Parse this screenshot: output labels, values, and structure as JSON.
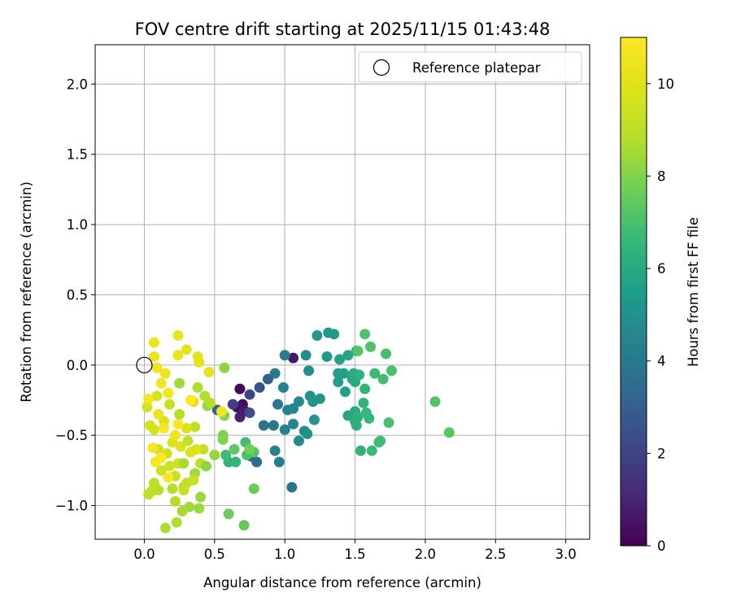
{
  "chart_data": {
    "type": "scatter",
    "title": "FOV centre drift starting at 2025/11/15 01:43:48",
    "xlabel": "Angular distance from reference (arcmin)",
    "ylabel": "Rotation from reference (arcmin)",
    "xlim": [
      -0.35,
      3.17
    ],
    "ylim": [
      -1.24,
      2.28
    ],
    "xticks": [
      0.0,
      0.5,
      1.0,
      1.5,
      2.0,
      2.5,
      3.0
    ],
    "xtick_labels": [
      "0.0",
      "0.5",
      "1.0",
      "1.5",
      "2.0",
      "2.5",
      "3.0"
    ],
    "yticks": [
      -1.0,
      -0.5,
      0.0,
      0.5,
      1.0,
      1.5,
      2.0
    ],
    "ytick_labels": [
      "−1.0",
      "−0.5",
      "0.0",
      "0.5",
      "1.0",
      "1.5",
      "2.0"
    ],
    "grid": true,
    "legend": {
      "position": "top-right",
      "entries": [
        {
          "label": "Reference platepar",
          "marker": "open-circle"
        }
      ]
    },
    "reference_point": {
      "x": 0.0,
      "y": 0.0
    },
    "colorbar": {
      "label": "Hours from first FF file",
      "colormap": "viridis",
      "range": [
        0,
        11
      ],
      "ticks": [
        0,
        2,
        4,
        6,
        8,
        10
      ],
      "tick_labels": [
        "0",
        "2",
        "4",
        "6",
        "8",
        "10"
      ]
    },
    "points": [
      {
        "x": 0.68,
        "y": -0.17,
        "h": 0.1
      },
      {
        "x": 0.7,
        "y": -0.28,
        "h": 0.3
      },
      {
        "x": 0.66,
        "y": -0.3,
        "h": 0.5
      },
      {
        "x": 0.72,
        "y": -0.33,
        "h": 0.7
      },
      {
        "x": 0.68,
        "y": -0.37,
        "h": 0.9
      },
      {
        "x": 1.06,
        "y": 0.05,
        "h": 0.6
      },
      {
        "x": 0.63,
        "y": -0.28,
        "h": 1.8
      },
      {
        "x": 0.75,
        "y": -0.21,
        "h": 2.1
      },
      {
        "x": 0.75,
        "y": -0.34,
        "h": 2.4
      },
      {
        "x": 0.82,
        "y": -0.16,
        "h": 2.6
      },
      {
        "x": 0.88,
        "y": -0.1,
        "h": 3.0
      },
      {
        "x": 0.52,
        "y": -0.32,
        "h": 3.2
      },
      {
        "x": 0.76,
        "y": -0.65,
        "h": 3.3
      },
      {
        "x": 0.8,
        "y": -0.69,
        "h": 3.5
      },
      {
        "x": 0.85,
        "y": -0.43,
        "h": 3.7
      },
      {
        "x": 0.92,
        "y": -0.43,
        "h": 3.8
      },
      {
        "x": 0.95,
        "y": -0.28,
        "h": 3.9
      },
      {
        "x": 0.93,
        "y": -0.06,
        "h": 4.0
      },
      {
        "x": 1.0,
        "y": 0.07,
        "h": 4.1
      },
      {
        "x": 1.05,
        "y": -0.87,
        "h": 3.8
      },
      {
        "x": 0.96,
        "y": -0.69,
        "h": 4.2
      },
      {
        "x": 0.93,
        "y": -0.61,
        "h": 4.3
      },
      {
        "x": 1.0,
        "y": -0.46,
        "h": 4.4
      },
      {
        "x": 0.99,
        "y": -0.16,
        "h": 4.4
      },
      {
        "x": 1.02,
        "y": -0.32,
        "h": 4.5
      },
      {
        "x": 1.06,
        "y": -0.31,
        "h": 4.6
      },
      {
        "x": 1.06,
        "y": -0.42,
        "h": 4.6
      },
      {
        "x": 1.1,
        "y": -0.26,
        "h": 4.7
      },
      {
        "x": 1.1,
        "y": -0.54,
        "h": 4.8
      },
      {
        "x": 1.14,
        "y": -0.47,
        "h": 4.8
      },
      {
        "x": 1.15,
        "y": 0.07,
        "h": 4.9
      },
      {
        "x": 1.17,
        "y": -0.04,
        "h": 4.9
      },
      {
        "x": 1.16,
        "y": -0.49,
        "h": 5.0
      },
      {
        "x": 1.18,
        "y": -0.22,
        "h": 5.0
      },
      {
        "x": 1.2,
        "y": -0.26,
        "h": 5.1
      },
      {
        "x": 1.21,
        "y": -0.39,
        "h": 5.1
      },
      {
        "x": 1.23,
        "y": 0.21,
        "h": 5.2
      },
      {
        "x": 1.25,
        "y": -0.24,
        "h": 5.2
      },
      {
        "x": 1.3,
        "y": 0.06,
        "h": 5.3
      },
      {
        "x": 1.31,
        "y": 0.23,
        "h": 5.3
      },
      {
        "x": 1.35,
        "y": 0.22,
        "h": 5.4
      },
      {
        "x": 1.38,
        "y": -0.06,
        "h": 5.5
      },
      {
        "x": 1.38,
        "y": -0.12,
        "h": 5.5
      },
      {
        "x": 1.42,
        "y": -0.06,
        "h": 5.6
      },
      {
        "x": 1.43,
        "y": -0.19,
        "h": 5.6
      },
      {
        "x": 1.39,
        "y": 0.04,
        "h": 5.7
      },
      {
        "x": 1.45,
        "y": 0.07,
        "h": 5.8
      },
      {
        "x": 1.45,
        "y": -0.36,
        "h": 5.8
      },
      {
        "x": 1.48,
        "y": -0.1,
        "h": 5.9
      },
      {
        "x": 1.5,
        "y": -0.12,
        "h": 6.0
      },
      {
        "x": 1.5,
        "y": -0.33,
        "h": 6.0
      },
      {
        "x": 1.49,
        "y": -0.06,
        "h": 6.1
      },
      {
        "x": 1.5,
        "y": -0.4,
        "h": 6.1
      },
      {
        "x": 1.51,
        "y": -0.43,
        "h": 6.2
      },
      {
        "x": 1.51,
        "y": 0.1,
        "h": 6.2
      },
      {
        "x": 1.52,
        "y": -0.37,
        "h": 6.3
      },
      {
        "x": 1.53,
        "y": -0.07,
        "h": 6.3
      },
      {
        "x": 1.54,
        "y": -0.61,
        "h": 6.4
      },
      {
        "x": 1.56,
        "y": -0.27,
        "h": 6.5
      },
      {
        "x": 1.57,
        "y": -0.17,
        "h": 6.5
      },
      {
        "x": 1.58,
        "y": -0.34,
        "h": 6.6
      },
      {
        "x": 1.6,
        "y": -0.38,
        "h": 6.6
      },
      {
        "x": 1.62,
        "y": -0.61,
        "h": 6.7
      },
      {
        "x": 1.64,
        "y": -0.06,
        "h": 6.7
      },
      {
        "x": 1.67,
        "y": -0.55,
        "h": 6.8
      },
      {
        "x": 1.68,
        "y": -0.54,
        "h": 6.8
      },
      {
        "x": 1.7,
        "y": -0.1,
        "h": 6.9
      },
      {
        "x": 1.72,
        "y": 0.08,
        "h": 6.9
      },
      {
        "x": 1.74,
        "y": -0.41,
        "h": 7.0
      },
      {
        "x": 1.76,
        "y": -0.04,
        "h": 7.0
      },
      {
        "x": 1.57,
        "y": 0.22,
        "h": 7.1
      },
      {
        "x": 1.61,
        "y": 0.13,
        "h": 7.1
      },
      {
        "x": 1.52,
        "y": 0.1,
        "h": 7.2
      },
      {
        "x": 2.07,
        "y": -0.26,
        "h": 7.2
      },
      {
        "x": 2.17,
        "y": -0.48,
        "h": 7.3
      },
      {
        "x": 0.6,
        "y": -0.69,
        "h": 6.4
      },
      {
        "x": 0.65,
        "y": -0.69,
        "h": 6.5
      },
      {
        "x": 0.58,
        "y": -0.64,
        "h": 6.8
      },
      {
        "x": 0.72,
        "y": -0.55,
        "h": 6.9
      },
      {
        "x": 0.73,
        "y": -0.64,
        "h": 7.0
      },
      {
        "x": 0.78,
        "y": -0.62,
        "h": 7.2
      },
      {
        "x": 0.64,
        "y": -0.6,
        "h": 7.4
      },
      {
        "x": 0.71,
        "y": -1.14,
        "h": 7.5
      },
      {
        "x": 0.6,
        "y": -1.06,
        "h": 7.6
      },
      {
        "x": 0.78,
        "y": -0.88,
        "h": 7.6
      },
      {
        "x": 0.75,
        "y": -0.6,
        "h": 7.8
      },
      {
        "x": 0.56,
        "y": -0.5,
        "h": 7.9
      },
      {
        "x": 0.56,
        "y": -0.53,
        "h": 8.0
      },
      {
        "x": 0.57,
        "y": -0.36,
        "h": 8.1
      },
      {
        "x": 0.57,
        "y": -0.02,
        "h": 8.2
      },
      {
        "x": 0.5,
        "y": -0.64,
        "h": 8.3
      },
      {
        "x": 0.45,
        "y": -0.29,
        "h": 8.3
      },
      {
        "x": 0.4,
        "y": -0.94,
        "h": 8.4
      },
      {
        "x": 0.39,
        "y": -1.02,
        "h": 8.4
      },
      {
        "x": 0.36,
        "y": -0.77,
        "h": 8.5
      },
      {
        "x": 0.32,
        "y": -1.01,
        "h": 8.5
      },
      {
        "x": 0.28,
        "y": -0.87,
        "h": 8.6
      },
      {
        "x": 0.27,
        "y": -1.04,
        "h": 8.6
      },
      {
        "x": 0.23,
        "y": -1.12,
        "h": 8.7
      },
      {
        "x": 0.15,
        "y": -1.16,
        "h": 8.7
      },
      {
        "x": 0.22,
        "y": -0.97,
        "h": 8.8
      },
      {
        "x": 0.2,
        "y": -0.88,
        "h": 8.8
      },
      {
        "x": 0.1,
        "y": -0.89,
        "h": 8.9
      },
      {
        "x": 0.05,
        "y": -0.9,
        "h": 9.0
      },
      {
        "x": 0.07,
        "y": -0.84,
        "h": 9.0
      },
      {
        "x": 0.25,
        "y": -0.13,
        "h": 8.5
      },
      {
        "x": 0.38,
        "y": -0.16,
        "h": 8.7
      },
      {
        "x": 0.43,
        "y": -0.22,
        "h": 8.8
      },
      {
        "x": 0.47,
        "y": -0.27,
        "h": 8.9
      },
      {
        "x": 0.36,
        "y": -0.44,
        "h": 9.0
      },
      {
        "x": 0.42,
        "y": -0.6,
        "h": 9.1
      },
      {
        "x": 0.4,
        "y": -0.7,
        "h": 9.1
      },
      {
        "x": 0.35,
        "y": -0.82,
        "h": 9.2
      },
      {
        "x": 0.3,
        "y": -0.84,
        "h": 9.2
      },
      {
        "x": 0.28,
        "y": -0.89,
        "h": 9.3
      },
      {
        "x": 0.22,
        "y": -0.79,
        "h": 9.3
      },
      {
        "x": 0.18,
        "y": -0.72,
        "h": 9.4
      },
      {
        "x": 0.12,
        "y": -0.75,
        "h": 9.4
      },
      {
        "x": 0.16,
        "y": -0.63,
        "h": 9.5
      },
      {
        "x": 0.1,
        "y": -0.6,
        "h": 9.5
      },
      {
        "x": 0.07,
        "y": -0.46,
        "h": 9.6
      },
      {
        "x": 0.04,
        "y": -0.43,
        "h": 9.6
      },
      {
        "x": 0.02,
        "y": -0.3,
        "h": 9.7
      },
      {
        "x": 0.09,
        "y": -0.22,
        "h": 9.7
      },
      {
        "x": 0.14,
        "y": -0.4,
        "h": 9.8
      },
      {
        "x": 0.2,
        "y": -0.55,
        "h": 9.8
      },
      {
        "x": 0.26,
        "y": -0.58,
        "h": 9.9
      },
      {
        "x": 0.3,
        "y": -0.45,
        "h": 9.9
      },
      {
        "x": 0.33,
        "y": -0.62,
        "h": 10.0
      },
      {
        "x": 0.35,
        "y": -0.26,
        "h": 10.0
      },
      {
        "x": 0.38,
        "y": 0.06,
        "h": 10.1
      },
      {
        "x": 0.39,
        "y": 0.02,
        "h": 10.1
      },
      {
        "x": 0.46,
        "y": -0.05,
        "h": 10.2
      },
      {
        "x": 0.3,
        "y": 0.11,
        "h": 10.2
      },
      {
        "x": 0.24,
        "y": 0.21,
        "h": 10.3
      },
      {
        "x": 0.24,
        "y": 0.07,
        "h": 10.3
      },
      {
        "x": 0.07,
        "y": 0.16,
        "h": 10.4
      },
      {
        "x": 0.07,
        "y": 0.06,
        "h": 10.4
      },
      {
        "x": 0.09,
        "y": -0.02,
        "h": 10.5
      },
      {
        "x": 0.15,
        "y": -0.06,
        "h": 10.5
      },
      {
        "x": 0.12,
        "y": -0.13,
        "h": 10.6
      },
      {
        "x": 0.17,
        "y": -0.2,
        "h": 10.6
      },
      {
        "x": 0.03,
        "y": -0.24,
        "h": 10.7
      },
      {
        "x": 0.06,
        "y": -0.59,
        "h": 10.7
      },
      {
        "x": 0.08,
        "y": -0.69,
        "h": 10.8
      },
      {
        "x": 0.12,
        "y": -0.66,
        "h": 10.8
      },
      {
        "x": 0.14,
        "y": -0.45,
        "h": 10.9
      },
      {
        "x": 0.17,
        "y": -0.8,
        "h": 10.9
      },
      {
        "x": 0.24,
        "y": -0.42,
        "h": 11.0
      },
      {
        "x": 0.33,
        "y": -0.25,
        "h": 11.0
      },
      {
        "x": 0.55,
        "y": -0.33,
        "h": 10.6
      },
      {
        "x": 0.03,
        "y": -0.92,
        "h": 9.1
      },
      {
        "x": 0.24,
        "y": -0.7,
        "h": 9.6
      },
      {
        "x": 0.31,
        "y": -0.54,
        "h": 9.2
      },
      {
        "x": 0.25,
        "y": -0.35,
        "h": 8.9
      },
      {
        "x": 0.18,
        "y": -0.28,
        "h": 9.3
      },
      {
        "x": 0.28,
        "y": -0.7,
        "h": 8.6
      },
      {
        "x": 0.44,
        "y": -0.72,
        "h": 8.2
      },
      {
        "x": 0.37,
        "y": -0.6,
        "h": 9.8
      },
      {
        "x": 0.1,
        "y": -0.35,
        "h": 10.3
      },
      {
        "x": 0.22,
        "y": -0.5,
        "h": 10.5
      }
    ]
  }
}
